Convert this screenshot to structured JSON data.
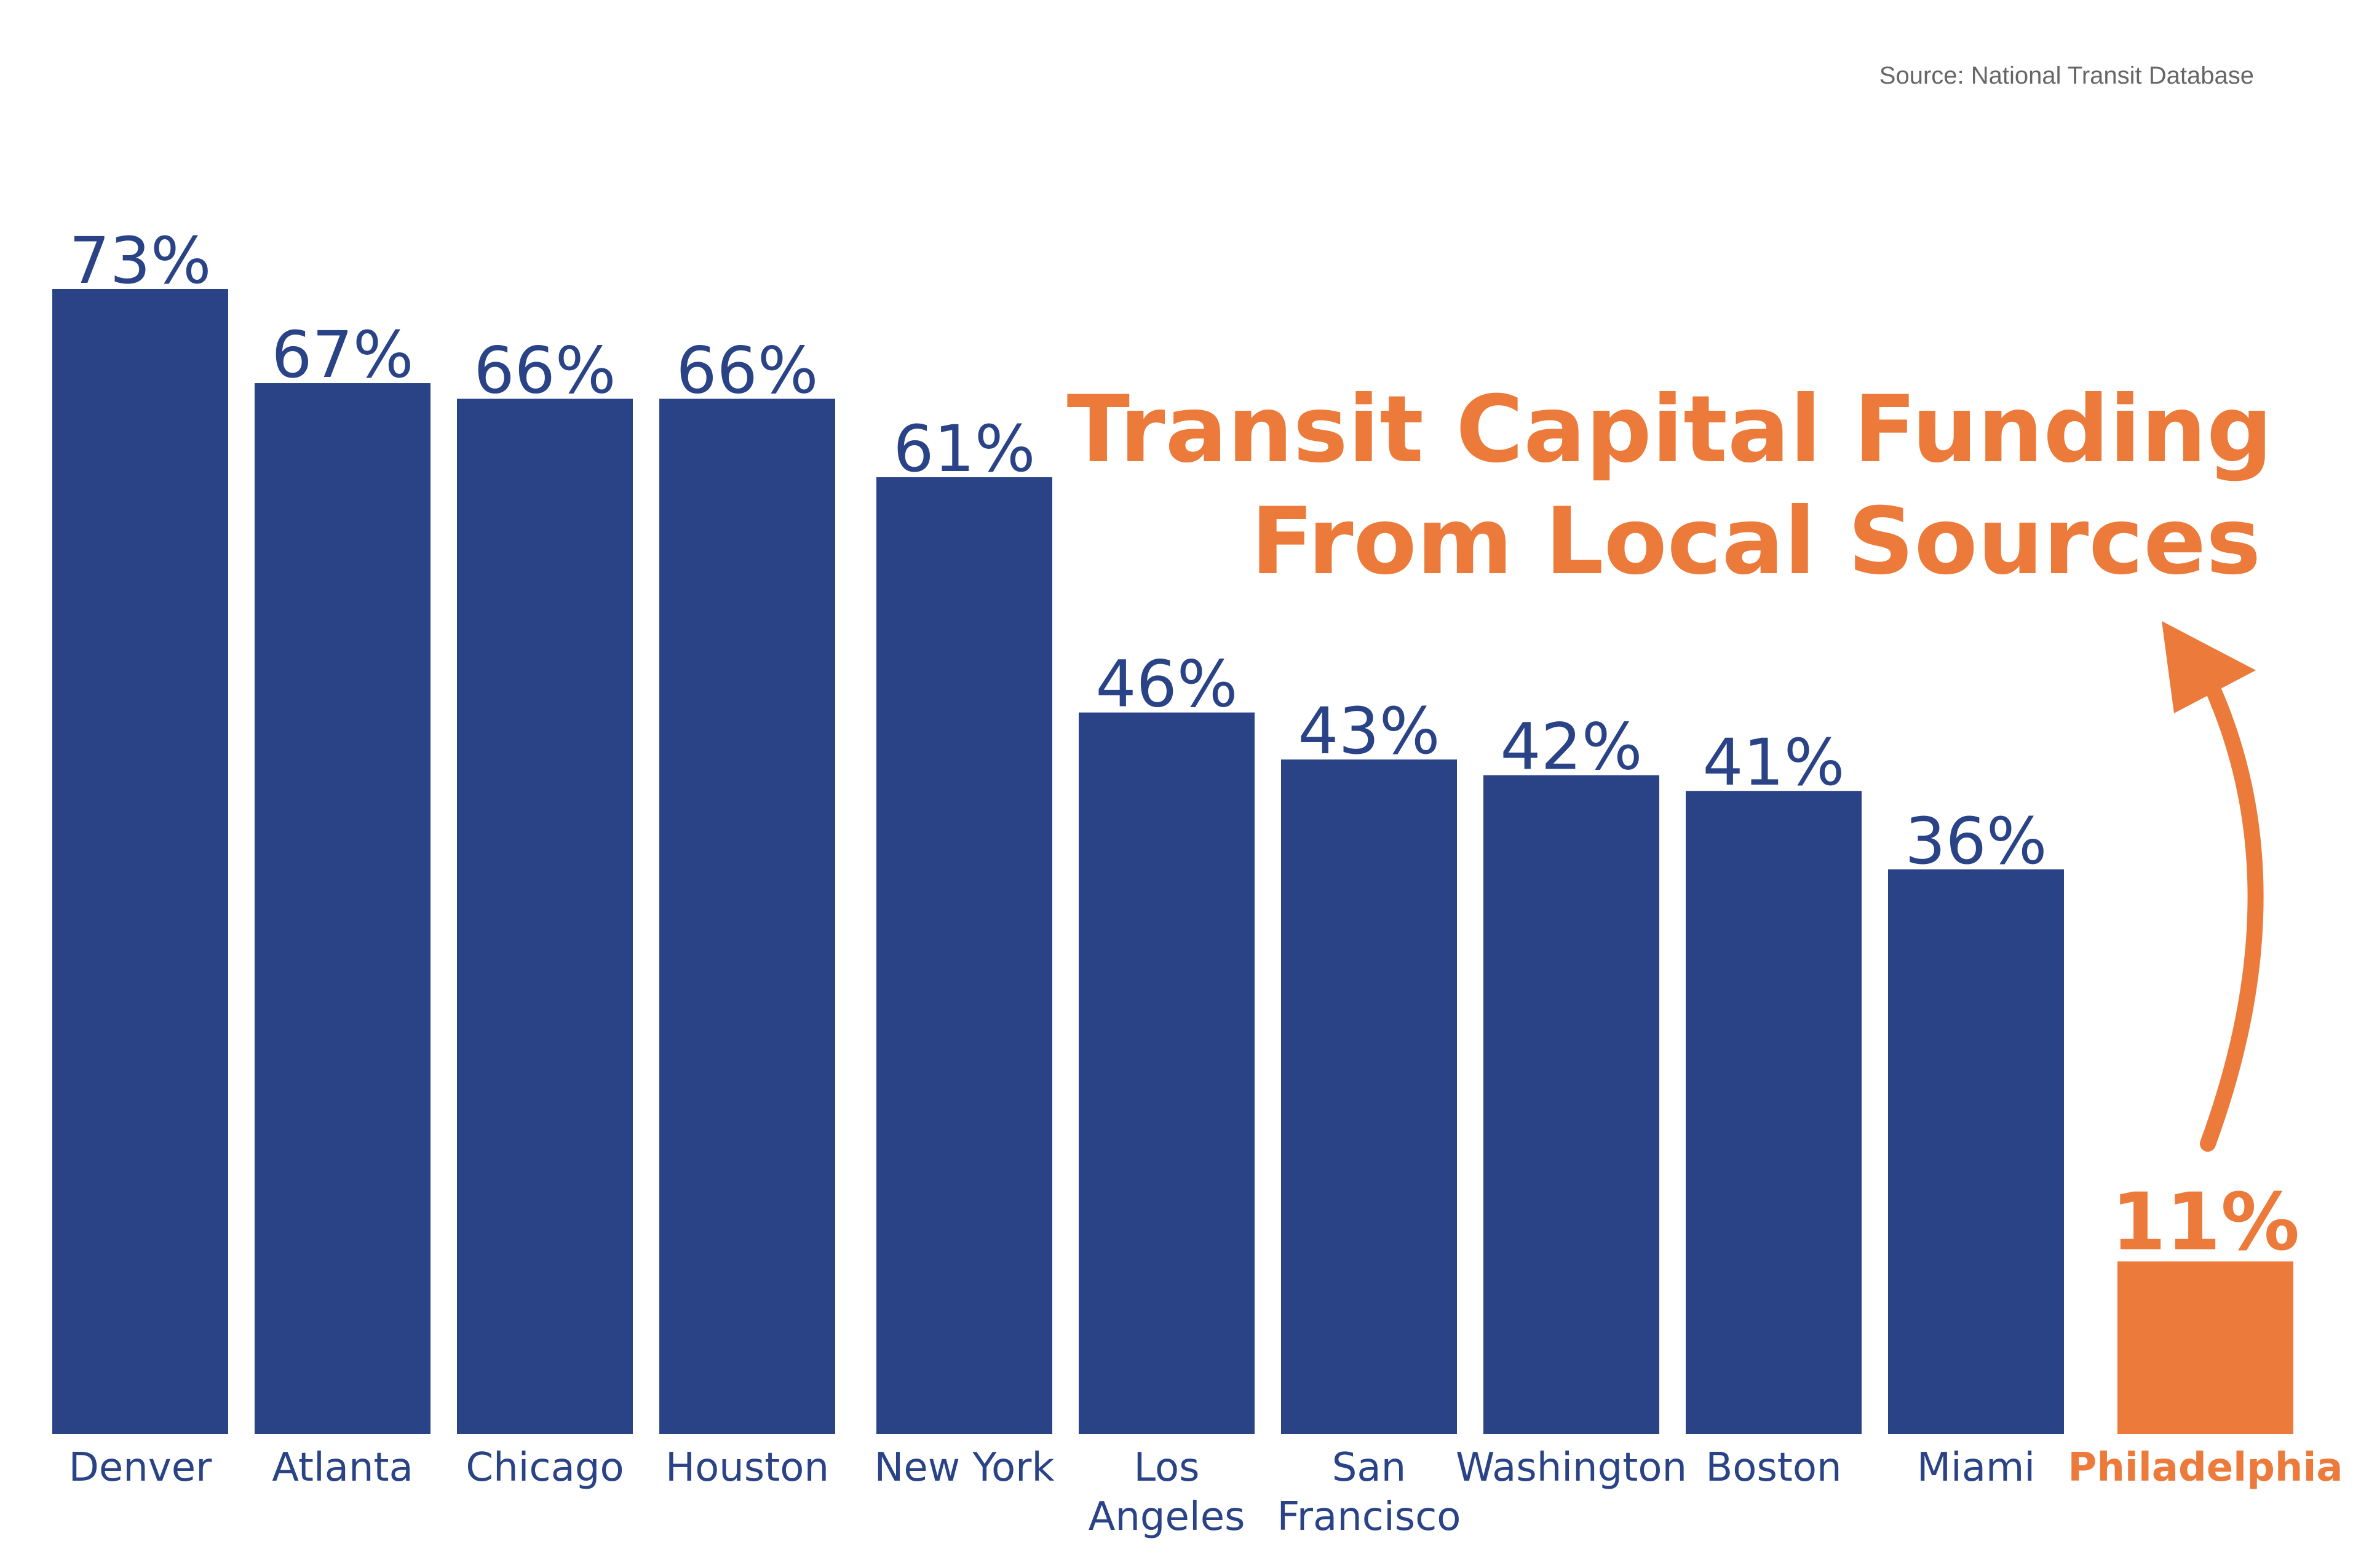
{
  "source": "Source: National Transit Database",
  "title": {
    "line1": "Transit Capital Funding",
    "line2": "From Local Sources"
  },
  "colors": {
    "bar": "#294386",
    "highlight": "#EC7B3B",
    "source_text": "#666666"
  },
  "chart_data": {
    "type": "bar",
    "title": "Transit Capital Funding From Local Sources",
    "source": "Source: National Transit Database",
    "xlabel": "",
    "ylabel": "",
    "unit": "%",
    "ylim": [
      0,
      73
    ],
    "grid": false,
    "categories": [
      [
        "Denver"
      ],
      [
        "Atlanta"
      ],
      [
        "Chicago"
      ],
      [
        "Houston"
      ],
      [
        "New York"
      ],
      [
        "Los",
        "Angeles"
      ],
      [
        "San",
        "Francisco"
      ],
      [
        "Washington"
      ],
      [
        "Boston"
      ],
      [
        "Miami"
      ],
      [
        "Philadelphia"
      ]
    ],
    "values": [
      73,
      67,
      66,
      66,
      61,
      46,
      43,
      42,
      41,
      36,
      11
    ],
    "value_labels": [
      "73%",
      "67%",
      "66%",
      "66%",
      "61%",
      "46%",
      "43%",
      "42%",
      "41%",
      "36%",
      "11%"
    ],
    "highlight_category": "Philadelphia",
    "annotation": "arrow pointing from the Philadelphia bar up to the title"
  }
}
